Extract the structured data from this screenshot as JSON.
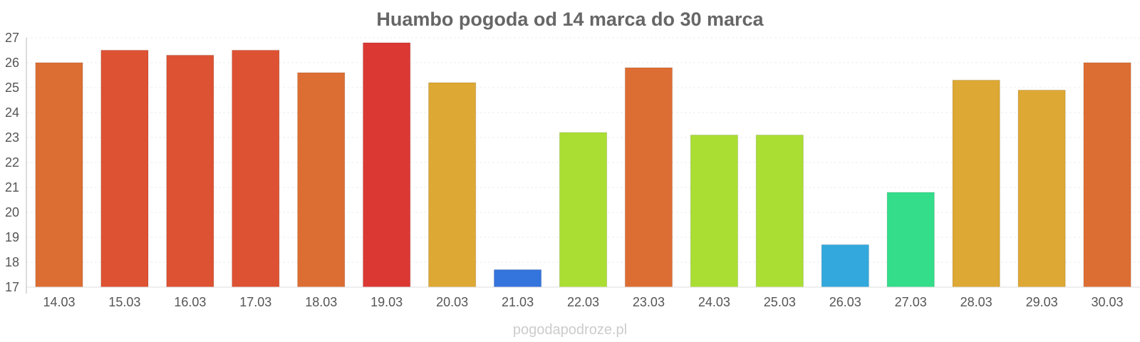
{
  "chart_data": {
    "type": "bar",
    "title": "Huambo pogoda od 14 marca do 30 marca",
    "categories": [
      "14.03",
      "15.03",
      "16.03",
      "17.03",
      "18.03",
      "19.03",
      "20.03",
      "21.03",
      "22.03",
      "23.03",
      "24.03",
      "25.03",
      "26.03",
      "27.03",
      "28.03",
      "29.03",
      "30.03"
    ],
    "values": [
      26.0,
      26.5,
      26.3,
      26.5,
      25.6,
      26.8,
      25.2,
      17.7,
      23.2,
      25.8,
      23.1,
      23.1,
      18.7,
      20.8,
      25.3,
      24.9,
      26.0
    ],
    "colors": [
      "#dd6e33",
      "#dd5233",
      "#dd5233",
      "#dd5233",
      "#dd6e33",
      "#db3833",
      "#dda833",
      "#3374dd",
      "#aade33",
      "#dd6e33",
      "#aade33",
      "#aade33",
      "#33a8dd",
      "#33dd8a",
      "#dda833",
      "#dda833",
      "#dd6e33"
    ],
    "yticks": [
      17,
      18,
      19,
      20,
      21,
      22,
      23,
      24,
      25,
      26,
      27
    ],
    "ylim": [
      17,
      27
    ],
    "grid": true,
    "legend": "none"
  },
  "watermark": "pogodapodroze.pl"
}
